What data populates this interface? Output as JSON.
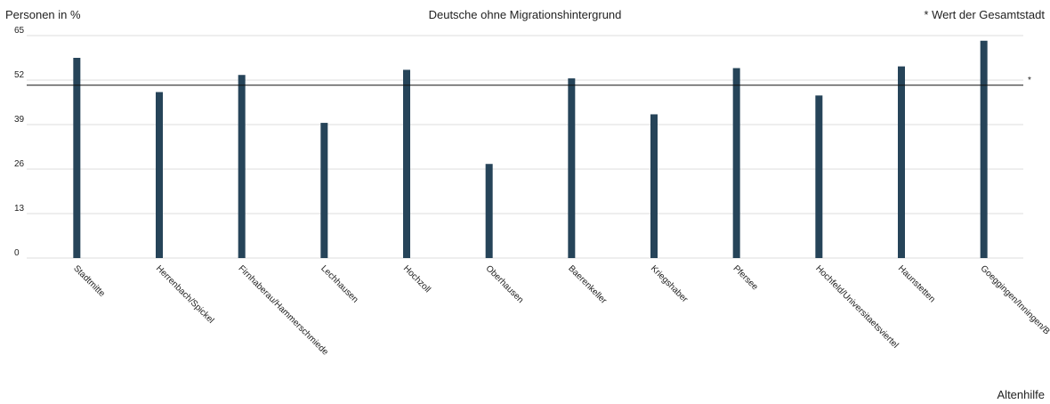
{
  "header": {
    "ylabel": "Personen in %",
    "title": "Deutsche ohne Migrationshintergrund",
    "note": "* Wert der Gesamtstadt"
  },
  "footer": {
    "label": "Altenhilfe"
  },
  "chart_data": {
    "type": "bar",
    "title": "Deutsche ohne Migrationshintergrund",
    "ylabel": "Personen in %",
    "xlabel": "",
    "ylim": [
      0,
      65
    ],
    "yticks": [
      0,
      13,
      26,
      39,
      52,
      65
    ],
    "grid": true,
    "categories": [
      "Stadtmitte",
      "Herrenbach/Spickel",
      "Firnhaberau/Hammerschmiede",
      "Lechhausen",
      "Hochzoll",
      "Oberhausen",
      "Baerenkeller",
      "Kriegshaber",
      "Pfersee",
      "Hochfeld/Universitaetsviertel",
      "Haunstetten",
      "Goeggingen/Inningen/B"
    ],
    "values": [
      58.5,
      48.5,
      53.5,
      39.5,
      55,
      27.5,
      52.5,
      42,
      55.5,
      47.5,
      56,
      63.5
    ],
    "reference": {
      "value": 50.5,
      "label": "*"
    },
    "bar_color": "#264459",
    "reference_color": "#111111",
    "grid_color": "#dddddd"
  }
}
